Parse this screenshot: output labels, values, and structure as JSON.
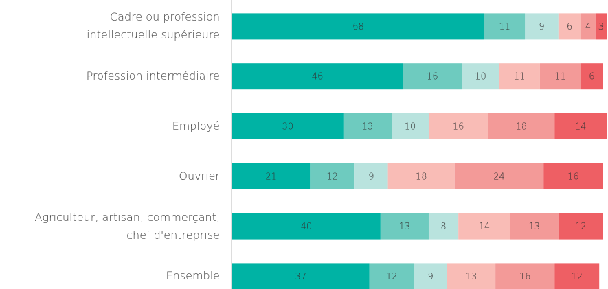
{
  "chart_data": {
    "type": "stacked-bar-horizontal",
    "categories": [
      "Cadre ou profession\nintellectuelle supérieure",
      "Profession intermédiaire",
      "Employé",
      "Ouvrier",
      "Agriculteur, artisan, commerçant,\nchef d'entreprise",
      "Ensemble"
    ],
    "series": [
      {
        "color": "#00b3a4",
        "values": [
          68,
          46,
          30,
          21,
          40,
          37
        ]
      },
      {
        "color": "#6ecbbf",
        "values": [
          11,
          16,
          13,
          12,
          13,
          12
        ]
      },
      {
        "color": "#b9e3de",
        "values": [
          9,
          10,
          10,
          9,
          8,
          9
        ]
      },
      {
        "color": "#f9bcb6",
        "values": [
          6,
          11,
          16,
          18,
          14,
          13
        ]
      },
      {
        "color": "#f39a98",
        "values": [
          4,
          11,
          18,
          24,
          13,
          16
        ]
      },
      {
        "color": "#ee5f64",
        "values": [
          3,
          6,
          14,
          16,
          12,
          12
        ]
      }
    ],
    "xlim": [
      0,
      101
    ]
  }
}
